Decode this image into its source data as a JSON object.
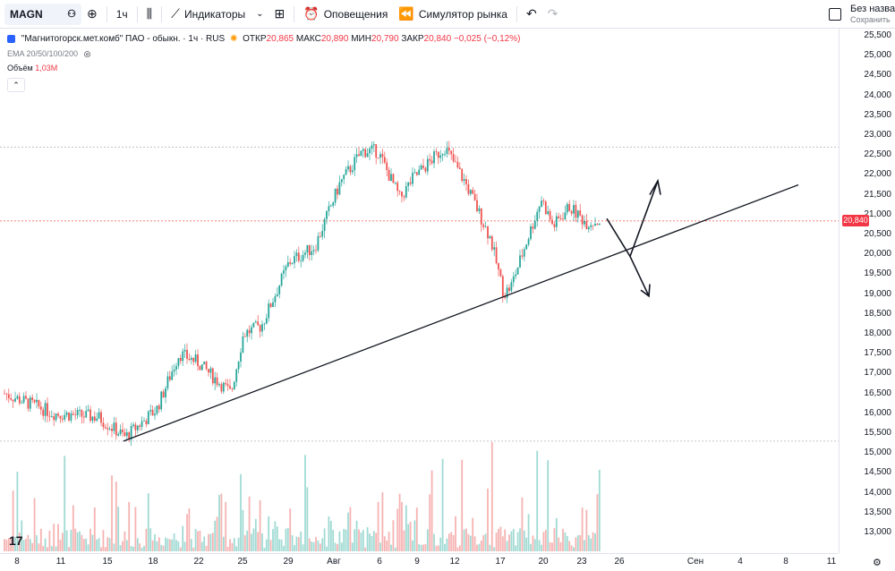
{
  "toolbar": {
    "symbol": "MAGN",
    "interval": "1ч",
    "indicators_label": "Индикаторы",
    "alerts_label": "Оповещения",
    "replay_label": "Симулятор рынка",
    "layout_name": "Без названия",
    "save_label": "Сохранить"
  },
  "legend": {
    "title": "\"Магнитогорск.мет.комб\" ПАО - обыкн. · 1ч · RUS",
    "open_label": "ОТКР",
    "open": "20,865",
    "high_label": "МАКС",
    "high": "20,890",
    "low_label": "МИН",
    "low": "20,790",
    "close_label": "ЗАКР",
    "close": "20,840",
    "change": "−0,025 (−0,12%)",
    "ema": "EMA 20/50/100/200",
    "volume_label": "Объём",
    "volume": "1,03M"
  },
  "price_axis": {
    "labels": [
      "25,500",
      "25,000",
      "24,500",
      "24,000",
      "23,500",
      "23,000",
      "22,500",
      "22,000",
      "21,500",
      "21,000",
      "20,500",
      "20,000",
      "19,500",
      "19,000",
      "18,500",
      "18,000",
      "17,500",
      "17,000",
      "16,500",
      "16,000",
      "15,500",
      "15,000",
      "14,500",
      "14,000",
      "13,500",
      "13,000"
    ],
    "current": "20,840"
  },
  "time_axis": {
    "labels": [
      "8",
      "11",
      "15",
      "18",
      "22",
      "25",
      "29",
      "Авг",
      "6",
      "9",
      "12",
      "17",
      "20",
      "23",
      "26",
      "Сен",
      "4",
      "8",
      "11"
    ]
  },
  "colors": {
    "up": "#26a69a",
    "down": "#ef5350",
    "trend": "#131722"
  },
  "chart_data": {
    "type": "candlestick",
    "symbol": "MAGN",
    "interval": "1h",
    "ylim": [
      12.75,
      25.75
    ],
    "path": [
      [
        "8",
        16.5
      ],
      [
        "11",
        16.0
      ],
      [
        "15",
        15.9
      ],
      [
        "16",
        15.4
      ],
      [
        "18",
        16.1
      ],
      [
        "19",
        17.5
      ],
      [
        "22",
        17.3
      ],
      [
        "24",
        16.5
      ],
      [
        "25",
        18.0
      ],
      [
        "26",
        18.2
      ],
      [
        "29",
        19.8
      ],
      [
        "30",
        20.2
      ],
      [
        "Авг",
        21.8
      ],
      [
        "5",
        22.6
      ],
      [
        "6",
        22.6
      ],
      [
        "8",
        21.4
      ],
      [
        "9",
        21.9
      ],
      [
        "10",
        22.7
      ],
      [
        "12",
        21.8
      ],
      [
        "14",
        20.4
      ],
      [
        "16",
        19.0
      ],
      [
        "17",
        19.2
      ],
      [
        "19",
        20.3
      ],
      [
        "20",
        21.4
      ],
      [
        "21",
        20.7
      ],
      [
        "22",
        21.2
      ],
      [
        "23",
        20.8
      ],
      [
        "24",
        20.84
      ]
    ],
    "annotations": {
      "trendline": [
        [
          "15",
          15.3
        ],
        [
          "11",
          21.75
        ]
      ],
      "level_lines": [
        22.7,
        20.84,
        15.3
      ]
    }
  }
}
